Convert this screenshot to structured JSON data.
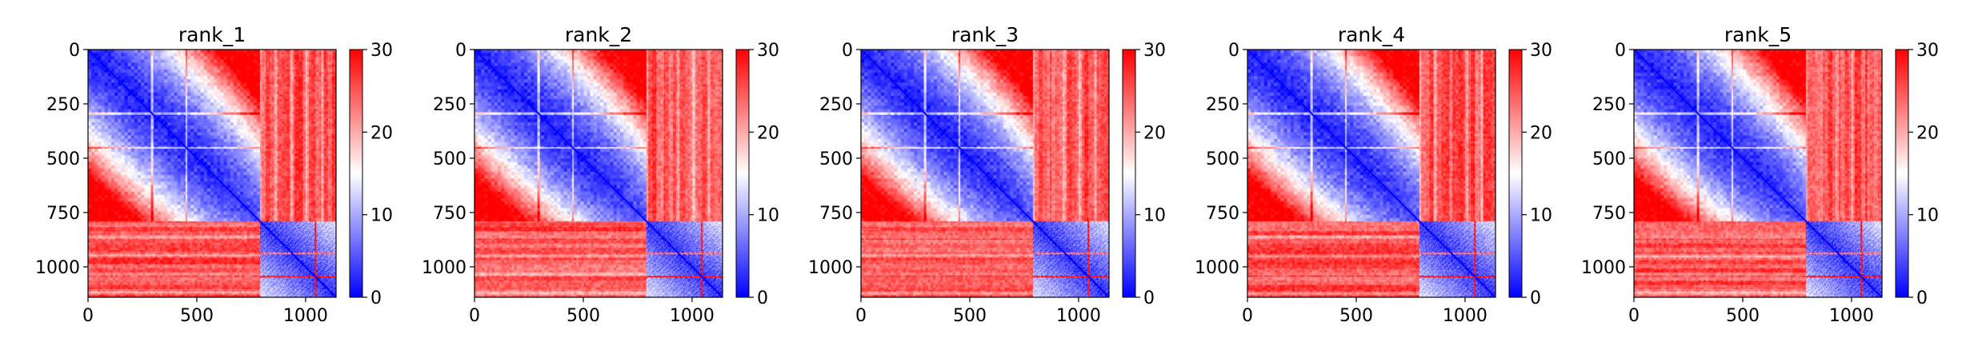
{
  "chart_data": [
    {
      "type": "heatmap",
      "title": "rank_1",
      "xlim": [
        0,
        1140
      ],
      "ylim": [
        1140,
        0
      ],
      "xticks": [
        0,
        500,
        1000
      ],
      "yticks": [
        0,
        250,
        500,
        750,
        1000
      ],
      "colorbar": {
        "range": [
          0,
          30
        ],
        "ticks": [
          0,
          10,
          20,
          30
        ],
        "colormap": "bwr"
      },
      "blocks": {
        "boundary": 790,
        "size": 1140
      }
    },
    {
      "type": "heatmap",
      "title": "rank_2",
      "xlim": [
        0,
        1140
      ],
      "ylim": [
        1140,
        0
      ],
      "xticks": [
        0,
        500,
        1000
      ],
      "yticks": [
        0,
        250,
        500,
        750,
        1000
      ],
      "colorbar": {
        "range": [
          0,
          30
        ],
        "ticks": [
          0,
          10,
          20,
          30
        ],
        "colormap": "bwr"
      },
      "blocks": {
        "boundary": 790,
        "size": 1140
      }
    },
    {
      "type": "heatmap",
      "title": "rank_3",
      "xlim": [
        0,
        1140
      ],
      "ylim": [
        1140,
        0
      ],
      "xticks": [
        0,
        500,
        1000
      ],
      "yticks": [
        0,
        250,
        500,
        750,
        1000
      ],
      "colorbar": {
        "range": [
          0,
          30
        ],
        "ticks": [
          0,
          10,
          20,
          30
        ],
        "colormap": "bwr"
      },
      "blocks": {
        "boundary": 790,
        "size": 1140
      }
    },
    {
      "type": "heatmap",
      "title": "rank_4",
      "xlim": [
        0,
        1140
      ],
      "ylim": [
        1140,
        0
      ],
      "xticks": [
        0,
        500,
        1000
      ],
      "yticks": [
        0,
        250,
        500,
        750,
        1000
      ],
      "colorbar": {
        "range": [
          0,
          30
        ],
        "ticks": [
          0,
          10,
          20,
          30
        ],
        "colormap": "bwr"
      },
      "blocks": {
        "boundary": 790,
        "size": 1140
      }
    },
    {
      "type": "heatmap",
      "title": "rank_5",
      "xlim": [
        0,
        1140
      ],
      "ylim": [
        1140,
        0
      ],
      "xticks": [
        0,
        500,
        1000
      ],
      "yticks": [
        0,
        250,
        500,
        750,
        1000
      ],
      "colorbar": {
        "range": [
          0,
          30
        ],
        "ticks": [
          0,
          10,
          20,
          30
        ],
        "colormap": "bwr"
      },
      "blocks": {
        "boundary": 790,
        "size": 1140
      }
    }
  ],
  "colors": {
    "low": "#0000ff",
    "mid": "#ffffff",
    "high": "#ff0000"
  }
}
